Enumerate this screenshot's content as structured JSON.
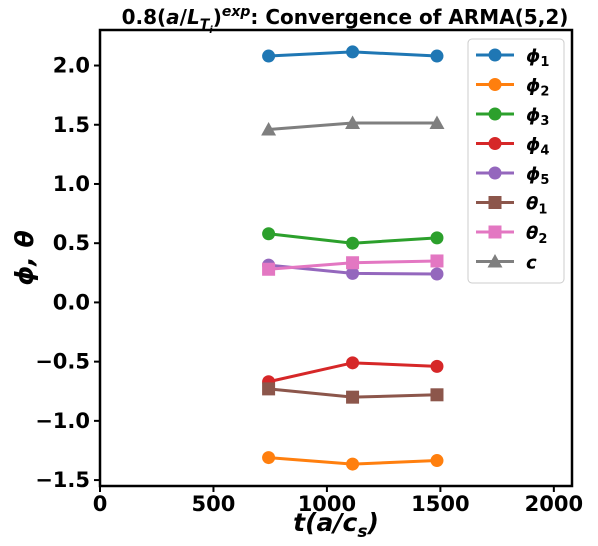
{
  "chart_data": {
    "type": "line",
    "title_parts": {
      "prefix": "0.8(",
      "a": "a",
      "slash": "/",
      "L": "L",
      "T": "T",
      "i": "i",
      "close": ")",
      "exp": "exp",
      "suffix": ": Convergence of ARMA(5,2)"
    },
    "xlabel_parts": {
      "t": "t",
      "open": "(a/c",
      "s": "s",
      "close": ")"
    },
    "ylabel": "ϕ, θ",
    "xlim": [
      0,
      2080
    ],
    "ylim": [
      -1.55,
      2.3
    ],
    "x_ticks": [
      0,
      500,
      1000,
      1500,
      2000
    ],
    "x_tick_labels": [
      "0",
      "500",
      "1000",
      "1500",
      "2000"
    ],
    "y_ticks": [
      -1.5,
      -1.0,
      -0.5,
      0.0,
      0.5,
      1.0,
      1.5,
      2.0
    ],
    "y_tick_labels": [
      "−1.5",
      "−1.0",
      "−0.5",
      "0.0",
      "0.5",
      "1.0",
      "1.5",
      "2.0"
    ],
    "grid": false,
    "legend_position": "top-right",
    "x": [
      743,
      1113,
      1485
    ],
    "series": [
      {
        "name": "ϕ",
        "sub": "1",
        "color": "#1f77b4",
        "marker": "circle",
        "values": [
          2.08,
          2.115,
          2.08
        ]
      },
      {
        "name": "ϕ",
        "sub": "2",
        "color": "#ff7f0e",
        "marker": "circle",
        "values": [
          -1.31,
          -1.365,
          -1.335
        ]
      },
      {
        "name": "ϕ",
        "sub": "3",
        "color": "#2ca02c",
        "marker": "circle",
        "values": [
          0.58,
          0.5,
          0.545
        ]
      },
      {
        "name": "ϕ",
        "sub": "4",
        "color": "#d62728",
        "marker": "circle",
        "values": [
          -0.67,
          -0.51,
          -0.54
        ]
      },
      {
        "name": "ϕ",
        "sub": "5",
        "color": "#9467bd",
        "marker": "circle",
        "values": [
          0.315,
          0.245,
          0.24
        ]
      },
      {
        "name": "θ",
        "sub": "1",
        "color": "#8c564b",
        "marker": "square",
        "values": [
          -0.73,
          -0.8,
          -0.78
        ]
      },
      {
        "name": "θ",
        "sub": "2",
        "color": "#e377c2",
        "marker": "square",
        "values": [
          0.28,
          0.335,
          0.35
        ]
      },
      {
        "name": "c",
        "sub": "",
        "color": "#7f7f7f",
        "marker": "triangle",
        "values": [
          1.46,
          1.515,
          1.515
        ]
      }
    ]
  }
}
